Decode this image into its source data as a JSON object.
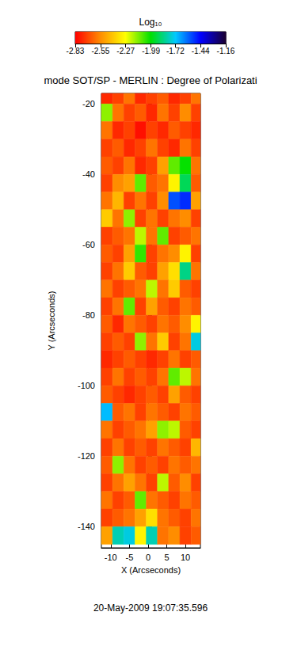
{
  "chart_data": {
    "type": "heatmap",
    "title": "mode SOT/SP - MERLIN : Degree of Polarizati",
    "x_label": "X (Arcseconds)",
    "y_label": "Y (Arcseconds)",
    "annotation": "20-May-2009 19:07:35.596",
    "xlim": [
      -12.5,
      14
    ],
    "ylim": [
      -146,
      -17
    ],
    "xticks": [
      -10,
      -5,
      0,
      5,
      10
    ],
    "yticks": [
      -140,
      -120,
      -100,
      -80,
      -60,
      -40,
      -20
    ],
    "x": [
      -11,
      -8,
      -5,
      -2,
      1,
      4,
      7,
      10,
      13
    ],
    "y": [
      -17.5,
      -22.5,
      -27.5,
      -32.5,
      -37.5,
      -42.5,
      -47.5,
      -52.5,
      -57.5,
      -62.5,
      -67.5,
      -72.5,
      -77.5,
      -82.5,
      -87.5,
      -92.5,
      -97.5,
      -102.5,
      -107.5,
      -112.5,
      -117.5,
      -122.5,
      -127.5,
      -132.5,
      -137.5,
      -142.5
    ],
    "values": [
      [
        -2.75,
        -2.7,
        -2.6,
        -2.75,
        -2.7,
        -2.65,
        -2.75,
        -2.7,
        -2.6
      ],
      [
        -2.15,
        -2.6,
        -2.7,
        -2.65,
        -2.75,
        -2.6,
        -2.7,
        -2.55,
        -2.7
      ],
      [
        -2.6,
        -2.75,
        -2.7,
        -2.8,
        -2.7,
        -2.75,
        -2.65,
        -2.7,
        -2.75
      ],
      [
        -2.7,
        -2.65,
        -2.75,
        -2.7,
        -2.6,
        -2.7,
        -2.75,
        -2.6,
        -2.7
      ],
      [
        -2.65,
        -2.7,
        -2.6,
        -2.75,
        -2.7,
        -2.5,
        -2.1,
        -2.0,
        -2.6
      ],
      [
        -2.7,
        -2.55,
        -2.5,
        -2.1,
        -2.65,
        -2.6,
        -2.3,
        -1.9,
        -2.65
      ],
      [
        -2.6,
        -2.45,
        -2.7,
        -2.6,
        -2.7,
        -2.55,
        -1.55,
        -1.5,
        -2.5
      ],
      [
        -2.4,
        -2.6,
        -2.15,
        -2.7,
        -2.6,
        -2.7,
        -2.6,
        -2.55,
        -2.7
      ],
      [
        -2.7,
        -2.65,
        -2.6,
        -2.2,
        -2.6,
        -2.1,
        -2.7,
        -2.65,
        -2.6
      ],
      [
        -2.65,
        -2.7,
        -2.5,
        -2.05,
        -2.7,
        -2.6,
        -2.55,
        -2.3,
        -2.7
      ],
      [
        -2.7,
        -2.6,
        -2.4,
        -2.65,
        -2.7,
        -2.5,
        -2.35,
        -1.85,
        -2.6
      ],
      [
        -2.6,
        -2.7,
        -2.65,
        -2.6,
        -2.2,
        -2.6,
        -2.4,
        -2.65,
        -2.7
      ],
      [
        -2.7,
        -2.6,
        -2.1,
        -2.7,
        -2.5,
        -2.65,
        -2.7,
        -2.6,
        -2.65
      ],
      [
        -2.65,
        -2.75,
        -2.6,
        -2.65,
        -2.7,
        -2.6,
        -2.65,
        -2.55,
        -2.3
      ],
      [
        -2.7,
        -2.65,
        -2.7,
        -2.15,
        -2.6,
        -2.4,
        -2.7,
        -2.6,
        -1.75
      ],
      [
        -2.75,
        -2.7,
        -2.65,
        -2.7,
        -2.75,
        -2.7,
        -2.6,
        -2.7,
        -2.65
      ],
      [
        -2.7,
        -2.6,
        -2.7,
        -2.65,
        -2.7,
        -2.6,
        -2.1,
        -2.2,
        -2.6
      ],
      [
        -2.65,
        -2.7,
        -2.75,
        -2.7,
        -2.65,
        -2.7,
        -2.5,
        -2.65,
        -2.7
      ],
      [
        -1.7,
        -2.65,
        -2.6,
        -2.7,
        -2.6,
        -2.65,
        -2.7,
        -2.6,
        -2.65
      ],
      [
        -2.6,
        -2.7,
        -2.65,
        -2.6,
        -2.5,
        -2.15,
        -2.2,
        -2.65,
        -2.7
      ],
      [
        -2.7,
        -2.6,
        -2.7,
        -2.65,
        -2.7,
        -2.6,
        -2.65,
        -2.7,
        -2.45
      ],
      [
        -2.65,
        -2.15,
        -2.6,
        -2.7,
        -2.65,
        -2.7,
        -2.6,
        -2.65,
        -2.6
      ],
      [
        -2.7,
        -2.6,
        -2.5,
        -2.6,
        -2.7,
        -2.2,
        -2.65,
        -2.55,
        -2.7
      ],
      [
        -2.6,
        -2.7,
        -2.65,
        -2.1,
        -2.6,
        -2.65,
        -2.7,
        -2.6,
        -2.65
      ],
      [
        -2.7,
        -2.65,
        -2.6,
        -2.5,
        -2.35,
        -2.6,
        -2.65,
        -2.7,
        -2.6
      ],
      [
        -2.5,
        -1.8,
        -1.75,
        -2.3,
        -1.8,
        -2.6,
        -2.55,
        -2.7,
        -2.65
      ]
    ],
    "colorbar": {
      "label": "Log₁₀",
      "range": [
        -2.83,
        -1.16
      ],
      "ticks": [
        -2.83,
        -2.55,
        -2.27,
        -1.99,
        -1.72,
        -1.44,
        -1.16
      ]
    }
  }
}
